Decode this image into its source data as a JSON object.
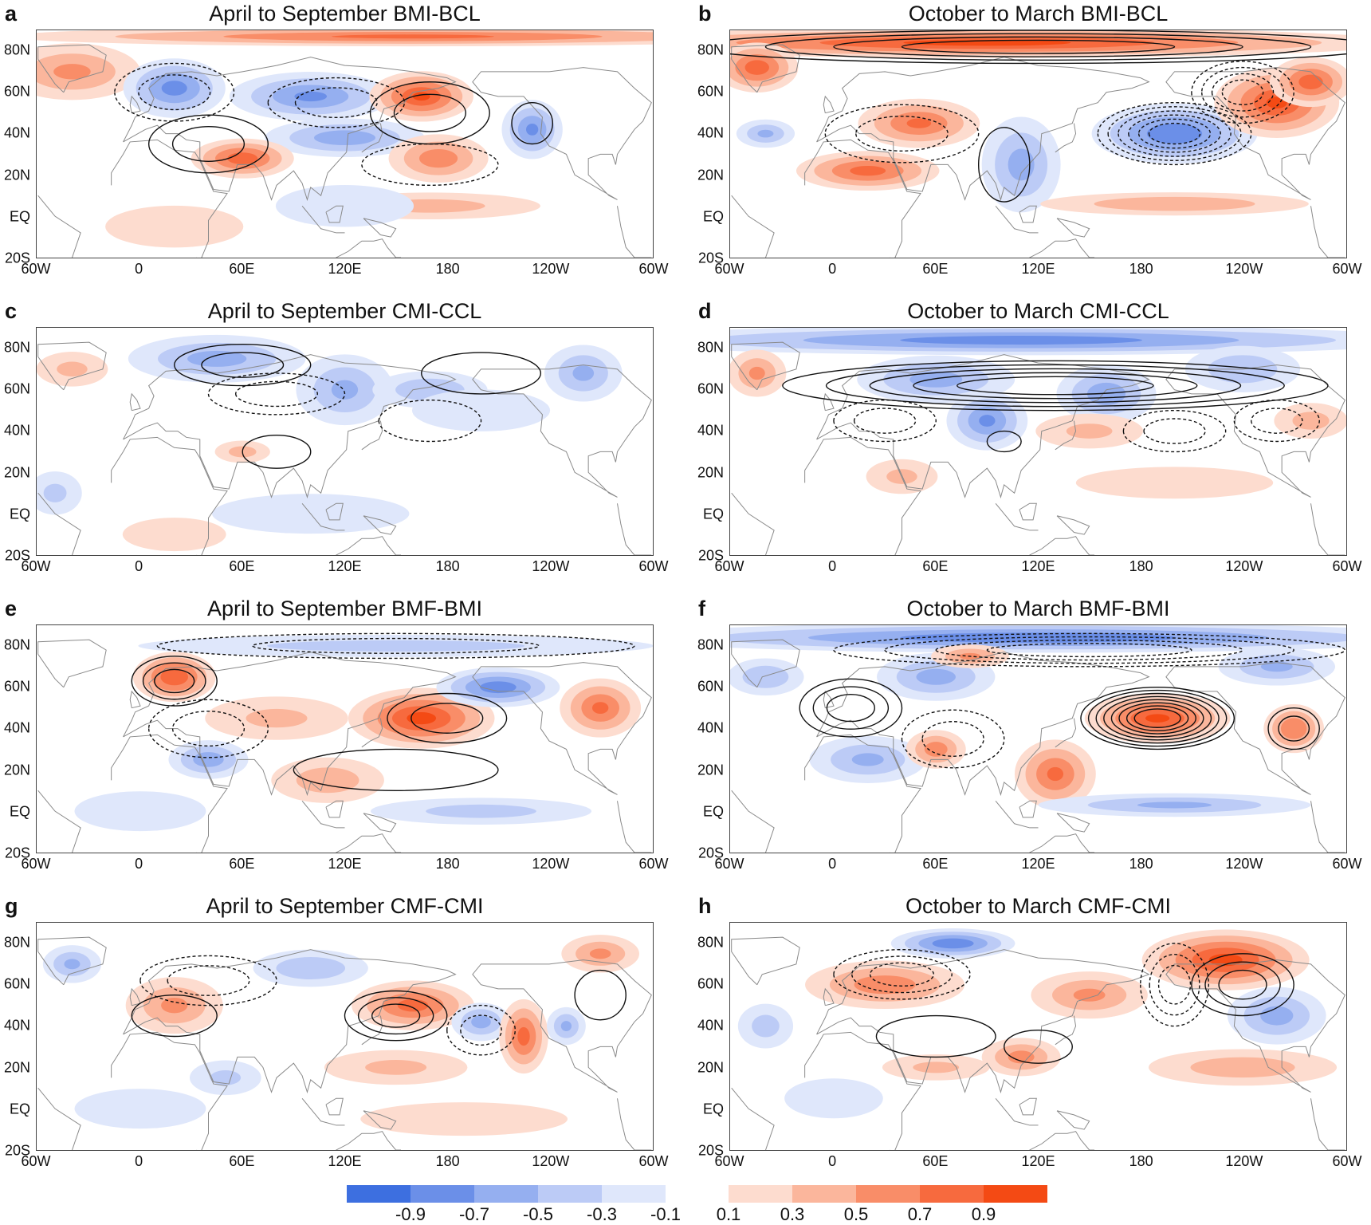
{
  "figure": {
    "panels": [
      {
        "letter": "a",
        "title": "April to September BMI-BCL",
        "season": "warm",
        "pattern": 0
      },
      {
        "letter": "b",
        "title": "October to March BMI-BCL",
        "season": "cold",
        "pattern": 1
      },
      {
        "letter": "c",
        "title": "April to September CMI-CCL",
        "season": "warm",
        "pattern": 2
      },
      {
        "letter": "d",
        "title": "October to March CMI-CCL",
        "season": "cold",
        "pattern": 3
      },
      {
        "letter": "e",
        "title": "April to September BMF-BMI",
        "season": "warm",
        "pattern": 4
      },
      {
        "letter": "f",
        "title": "October to March BMF-BMI",
        "season": "cold",
        "pattern": 5
      },
      {
        "letter": "g",
        "title": "April to September CMF-CMI",
        "season": "warm",
        "pattern": 6
      },
      {
        "letter": "h",
        "title": "October to March CMF-CMI",
        "season": "cold",
        "pattern": 7
      }
    ],
    "lat_labels": [
      "80N",
      "60N",
      "40N",
      "20N",
      "EQ",
      "20S"
    ],
    "lat_values": [
      80,
      60,
      40,
      20,
      0,
      -20
    ],
    "lon_labels": [
      "60W",
      "0",
      "60E",
      "120E",
      "180",
      "120W",
      "60W"
    ],
    "lon_values": [
      -60,
      0,
      60,
      120,
      180,
      240,
      300
    ],
    "lon_range": [
      -60,
      300
    ],
    "lat_range": [
      -20,
      90
    ]
  },
  "colorbar": {
    "negative": {
      "labels": [
        "-0.9",
        "-0.7",
        "-0.5",
        "-0.3",
        "-0.1"
      ],
      "colors": [
        "#3d6fe0",
        "#6b8fe8",
        "#95aff0",
        "#bccbf6",
        "#dfe7fb"
      ]
    },
    "positive": {
      "labels": [
        "0.1",
        "0.3",
        "0.5",
        "0.7",
        "0.9"
      ],
      "colors": [
        "#fddccf",
        "#fbb69c",
        "#f98d68",
        "#f76a3e",
        "#f44a14"
      ]
    }
  },
  "colors": {
    "land_outline": "#8a8a8a",
    "contour": "#111111"
  }
}
